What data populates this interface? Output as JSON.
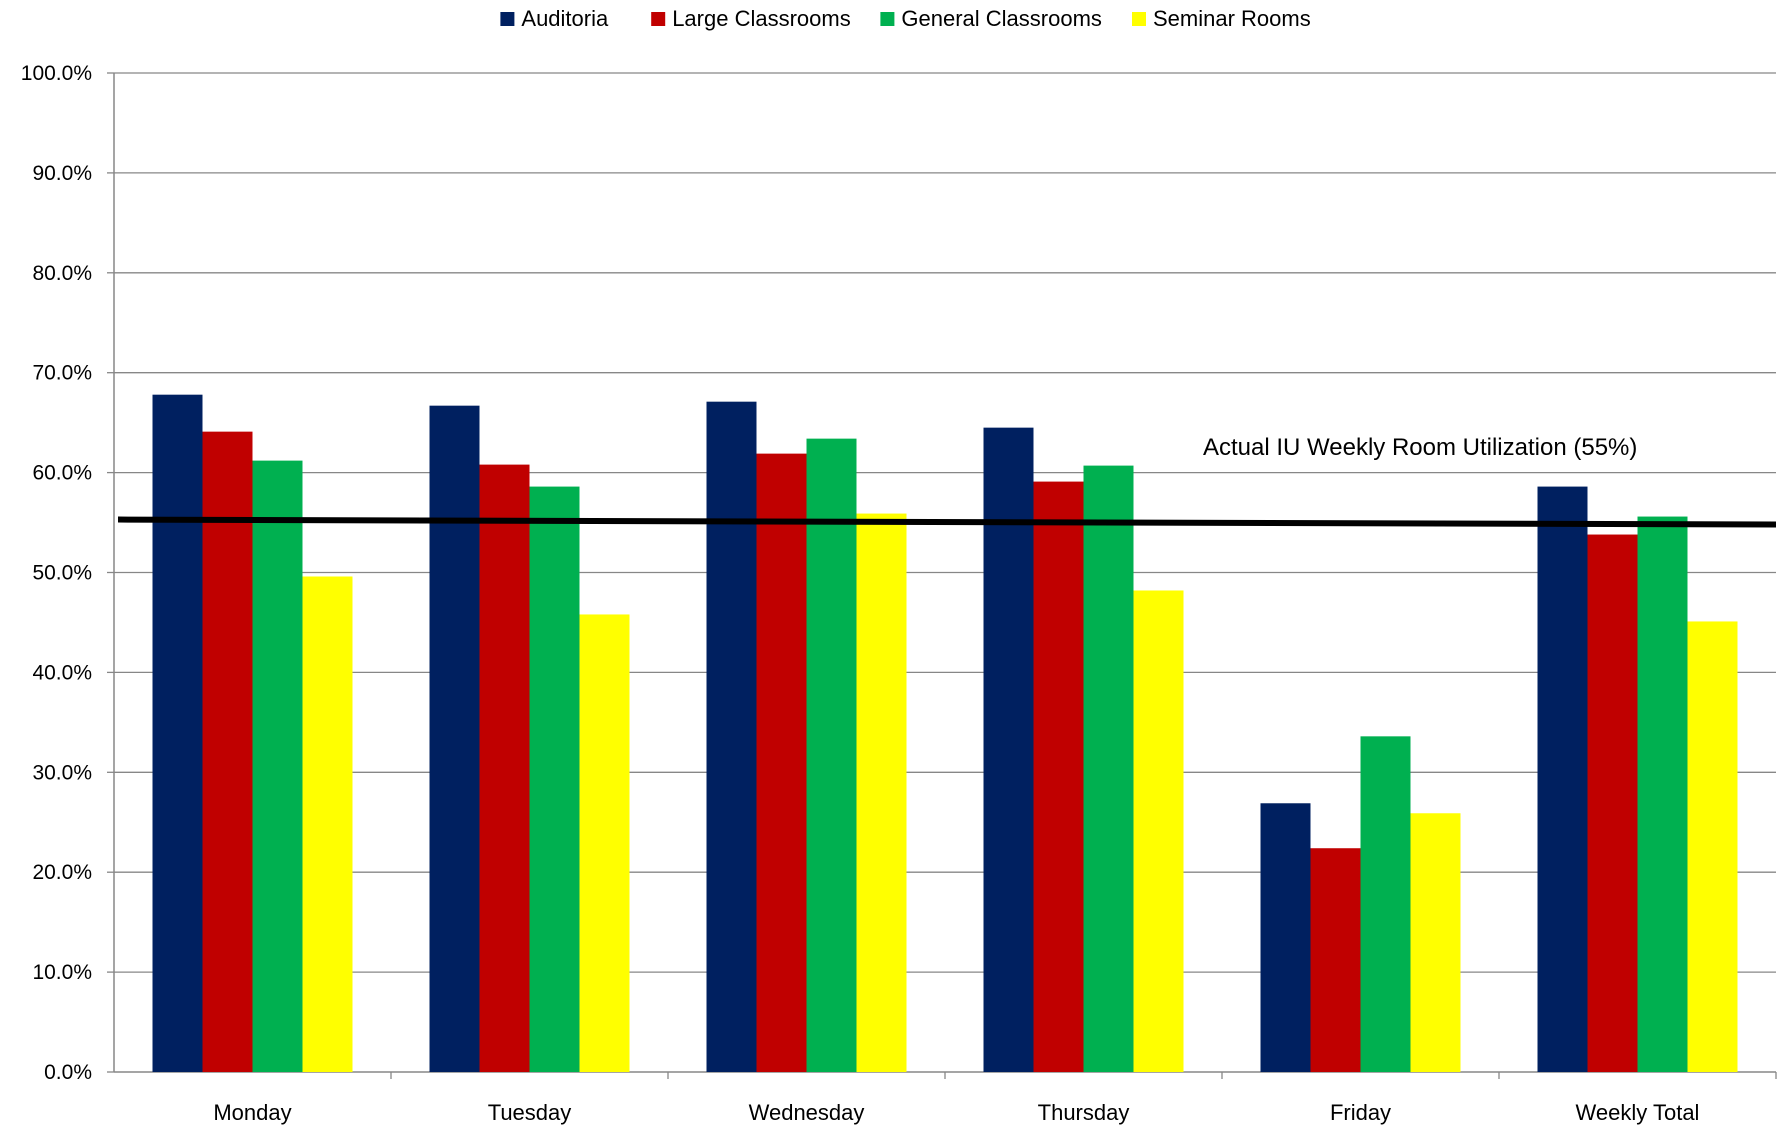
{
  "chart_data": {
    "type": "bar",
    "title": "",
    "xlabel": "",
    "ylabel": "",
    "categories": [
      "Monday",
      "Tuesday",
      "Wednesday",
      "Thursday",
      "Friday",
      "Weekly Total"
    ],
    "series": [
      {
        "name": "Auditoria",
        "color": "#002060",
        "values": [
          67.8,
          66.7,
          67.1,
          64.5,
          26.9,
          58.6
        ]
      },
      {
        "name": "Large Classrooms",
        "color": "#C00000",
        "values": [
          64.1,
          60.8,
          61.9,
          59.1,
          22.4,
          53.8
        ]
      },
      {
        "name": "General Classrooms",
        "color": "#00B050",
        "values": [
          61.2,
          58.6,
          63.4,
          60.7,
          33.6,
          55.6
        ]
      },
      {
        "name": "Seminar Rooms",
        "color": "#FFFF00",
        "values": [
          49.6,
          45.8,
          55.9,
          48.2,
          25.9,
          45.1
        ]
      }
    ],
    "ylim": [
      0,
      100
    ],
    "y_ticks": [
      "0.0%",
      "10.0%",
      "20.0%",
      "30.0%",
      "40.0%",
      "50.0%",
      "60.0%",
      "70.0%",
      "80.0%",
      "90.0%",
      "100.0%"
    ],
    "grid": true,
    "legend_position": "top-center",
    "reference_line": {
      "label": "Actual IU Weekly Room Utilization (55%)",
      "start_value": 55.3,
      "end_value": 54.8,
      "color": "#000000"
    }
  }
}
